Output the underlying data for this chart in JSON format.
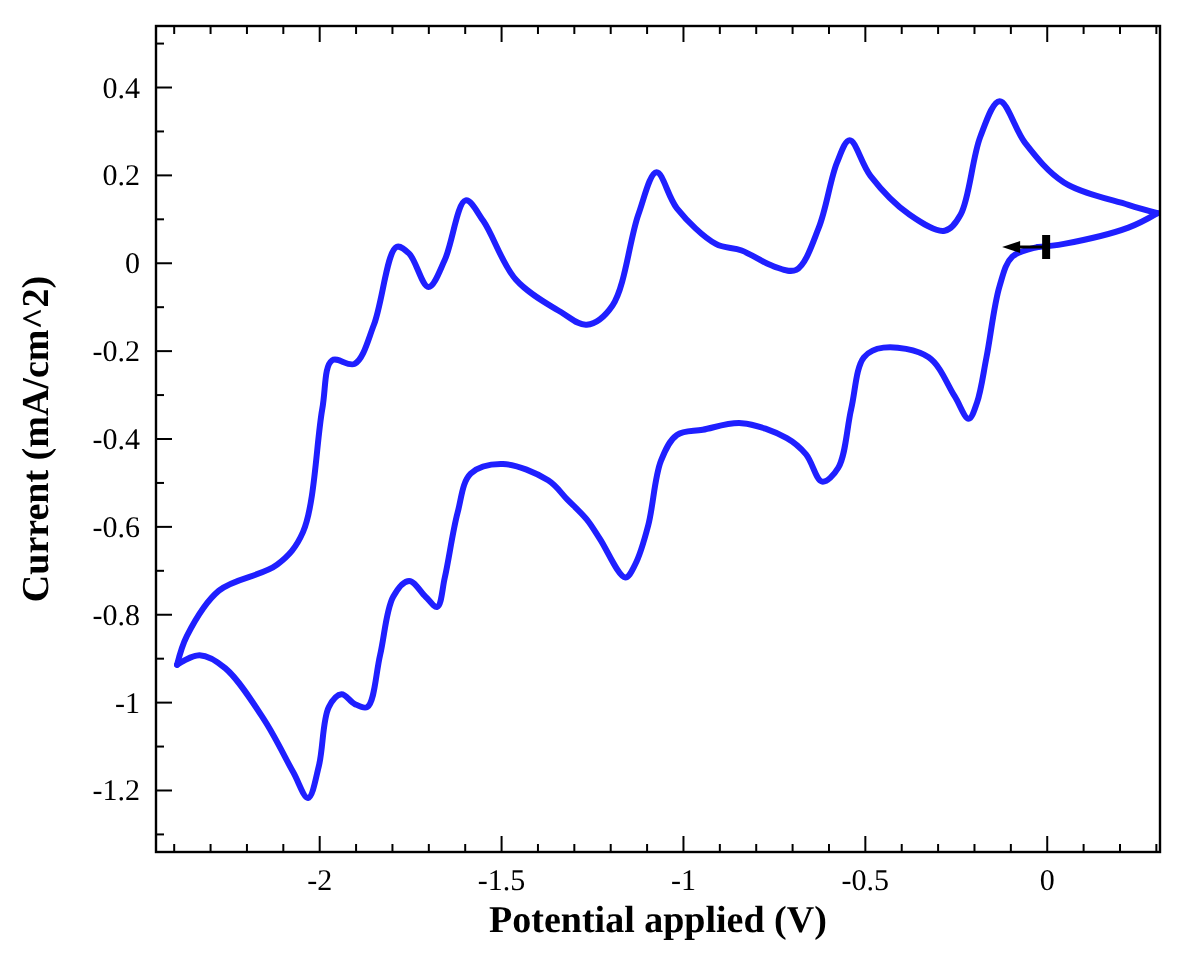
{
  "chart_data": {
    "type": "line",
    "xlabel": "Potential applied (V)",
    "ylabel": "Current (mA/cm^2)",
    "xlim": [
      -2.45,
      0.31
    ],
    "ylim": [
      -1.34,
      0.54
    ],
    "xticks": [
      {
        "value": -2.4,
        "label": null
      },
      {
        "value": -2.3,
        "label": null
      },
      {
        "value": -2.2,
        "label": null
      },
      {
        "value": -2.1,
        "label": null
      },
      -2,
      {
        "value": -1.9,
        "label": null
      },
      {
        "value": -1.8,
        "label": null
      },
      {
        "value": -1.7,
        "label": null
      },
      {
        "value": -1.6,
        "label": null
      },
      -1.5,
      {
        "value": -1.4,
        "label": null
      },
      {
        "value": -1.3,
        "label": null
      },
      {
        "value": -1.2,
        "label": null
      },
      {
        "value": -1.1,
        "label": null
      },
      -1,
      {
        "value": -0.9,
        "label": null
      },
      {
        "value": -0.8,
        "label": null
      },
      {
        "value": -0.7,
        "label": null
      },
      {
        "value": -0.6,
        "label": null
      },
      -0.5,
      {
        "value": -0.4,
        "label": null
      },
      {
        "value": -0.3,
        "label": null
      },
      {
        "value": -0.2,
        "label": null
      },
      {
        "value": -0.1,
        "label": null
      },
      0,
      {
        "value": 0.1,
        "label": null
      },
      {
        "value": 0.2,
        "label": null
      },
      {
        "value": 0.3,
        "label": null
      }
    ],
    "yticks": [
      {
        "value": -1.3,
        "label": null
      },
      -1.2,
      {
        "value": -1.1,
        "label": null
      },
      -1,
      {
        "value": -0.9,
        "label": null
      },
      -0.8,
      {
        "value": -0.7,
        "label": null
      },
      -0.6,
      {
        "value": -0.5,
        "label": null
      },
      -0.4,
      {
        "value": -0.3,
        "label": null
      },
      -0.2,
      {
        "value": -0.1,
        "label": null
      },
      0,
      {
        "value": 0.1,
        "label": null
      },
      0.2,
      {
        "value": 0.3,
        "label": null
      },
      0.4,
      {
        "value": 0.5,
        "label": null
      }
    ],
    "grid": false,
    "marker": "none",
    "line_style": "solid",
    "series": [
      {
        "color": "#1f1fff",
        "x": [
          -0.025,
          -0.096,
          -0.131,
          -0.167,
          -0.193,
          -0.216,
          -0.255,
          -0.326,
          -0.45,
          -0.504,
          -0.539,
          -0.574,
          -0.619,
          -0.663,
          -0.716,
          -0.84,
          -0.947,
          -1.018,
          -1.062,
          -1.097,
          -1.133,
          -1.16,
          -1.23,
          -1.266,
          -1.319,
          -1.372,
          -1.496,
          -1.585,
          -1.621,
          -1.656,
          -1.677,
          -1.709,
          -1.754,
          -1.798,
          -1.834,
          -1.869,
          -1.904,
          -1.94,
          -1.975,
          -2.002,
          -2.032,
          -2.073,
          -2.152,
          -2.259,
          -2.33,
          -2.392
        ],
        "values": [
          0.037,
          0.015,
          -0.052,
          -0.214,
          -0.317,
          -0.354,
          -0.302,
          -0.214,
          -0.192,
          -0.214,
          -0.332,
          -0.465,
          -0.497,
          -0.435,
          -0.398,
          -0.364,
          -0.379,
          -0.391,
          -0.45,
          -0.597,
          -0.686,
          -0.715,
          -0.627,
          -0.583,
          -0.538,
          -0.494,
          -0.457,
          -0.479,
          -0.568,
          -0.715,
          -0.782,
          -0.759,
          -0.723,
          -0.759,
          -0.892,
          -1.01,
          -1.003,
          -0.981,
          -1.01,
          -1.143,
          -1.217,
          -1.158,
          -1.04,
          -0.922,
          -0.892,
          -0.914
        ]
      },
      {
        "color": "#1f1fff",
        "x": [
          -2.392,
          -2.365,
          -2.277,
          -2.117,
          -2.046,
          -1.993,
          -1.966,
          -1.904,
          -1.851,
          -1.789,
          -1.754,
          -1.701,
          -1.656,
          -1.599,
          -1.55,
          -1.461,
          -1.337,
          -1.266,
          -1.195,
          -1.124,
          -1.074,
          -1.018,
          -0.911,
          -0.84,
          -0.752,
          -0.69,
          -0.628,
          -0.578,
          -0.543,
          -0.486,
          -0.379,
          -0.282,
          -0.238,
          -0.184,
          -0.131,
          -0.06,
          0.046,
          0.223,
          0.303
        ],
        "values": [
          -0.914,
          -0.848,
          -0.745,
          -0.686,
          -0.612,
          -0.332,
          -0.221,
          -0.229,
          -0.14,
          0.037,
          0.022,
          -0.054,
          0.008,
          0.143,
          0.096,
          -0.037,
          -0.111,
          -0.14,
          -0.096,
          0.111,
          0.207,
          0.125,
          0.044,
          0.029,
          -0.007,
          -0.015,
          0.081,
          0.229,
          0.28,
          0.199,
          0.111,
          0.074,
          0.111,
          0.288,
          0.369,
          0.273,
          0.184,
          0.133,
          0.114
        ]
      },
      {
        "color": "#1f1fff",
        "x": [
          0.303,
          0.223,
          0.046,
          -0.025
        ],
        "values": [
          0.114,
          0.081,
          0.044,
          0.037
        ]
      }
    ]
  }
}
